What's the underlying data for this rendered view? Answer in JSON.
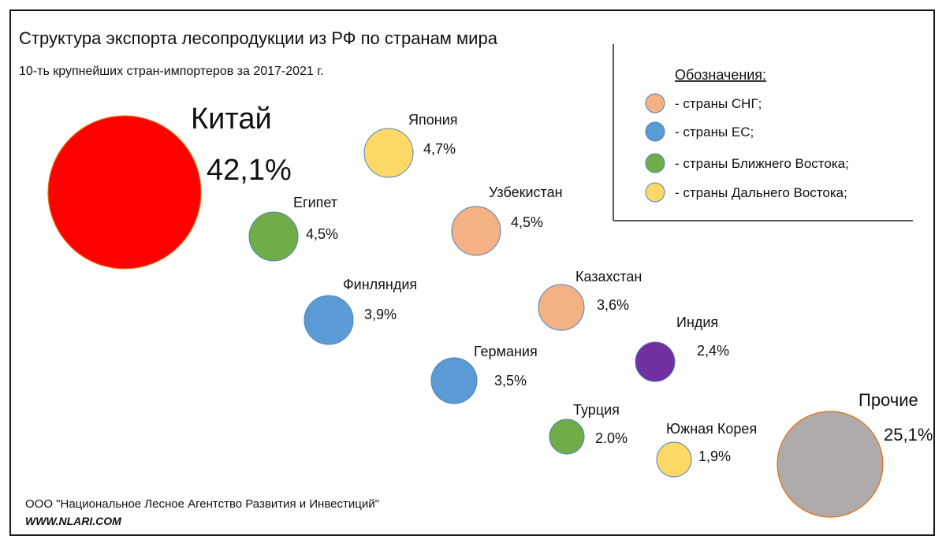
{
  "chart_data": {
    "type": "bubble",
    "title": "Структура экспорта лесопродукции из РФ по странам мира",
    "subtitle": "10-ть крупнейших стран-импортеров за 2017-2021 г.",
    "points": [
      {
        "name": "Китай",
        "value_label": "42,1%",
        "value": 42.1,
        "group": "far_east_special"
      },
      {
        "name": "Япония",
        "value_label": "4,7%",
        "value": 4.7,
        "group": "far_east"
      },
      {
        "name": "Египет",
        "value_label": "4,5%",
        "value": 4.5,
        "group": "middle_east"
      },
      {
        "name": "Узбекистан",
        "value_label": "4,5%",
        "value": 4.5,
        "group": "cis"
      },
      {
        "name": "Финляндия",
        "value_label": "3,9%",
        "value": 3.9,
        "group": "eu"
      },
      {
        "name": "Казахстан",
        "value_label": "3,6%",
        "value": 3.6,
        "group": "cis"
      },
      {
        "name": "Индия",
        "value_label": "2,4%",
        "value": 2.4,
        "group": "india"
      },
      {
        "name": "Германия",
        "value_label": "3,5%",
        "value": 3.5,
        "group": "eu"
      },
      {
        "name": "Турция",
        "value_label": "2.0%",
        "value": 2.0,
        "group": "middle_east"
      },
      {
        "name": "Южная Корея",
        "value_label": "1,9%",
        "value": 1.9,
        "group": "far_east"
      },
      {
        "name": "Прочие",
        "value_label": "25,1%",
        "value": 25.1,
        "group": "other"
      }
    ],
    "group_colors": {
      "cis": "#F4B183",
      "eu": "#5B9BD5",
      "middle_east": "#70AD47",
      "far_east": "#FFD966",
      "far_east_special": "#FF0000",
      "india": "#7030A0",
      "other": "#AFABAB"
    },
    "legend": {
      "title": "Обозначения:",
      "placement": "top-right",
      "items": [
        {
          "label": "- страны СНГ;",
          "color": "#F4B183"
        },
        {
          "label": "- страны ЕС;",
          "color": "#5B9BD5"
        },
        {
          "label": "- страны Ближнего Востока;",
          "color": "#70AD47"
        },
        {
          "label": "- страны Дальнего Востока;",
          "color": "#FFD966"
        }
      ]
    }
  },
  "footer": {
    "company": "ООО \"Национальное Лесное Агентство Развития и Инвестиций\"",
    "website": "WWW.NLARI.COM"
  }
}
